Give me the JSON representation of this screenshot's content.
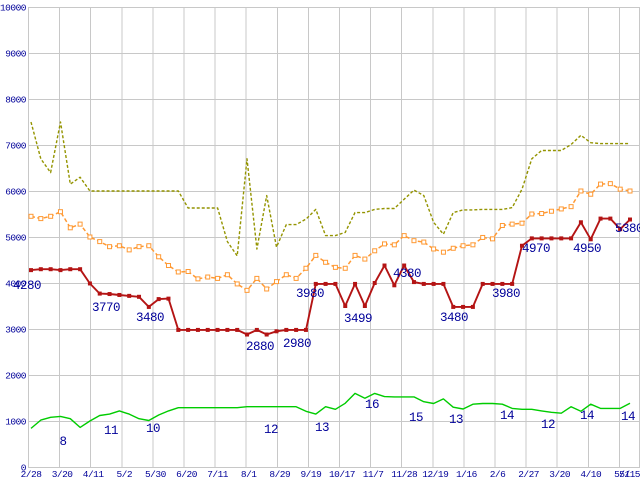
{
  "chart_data": {
    "type": "line",
    "title": "",
    "grid": true,
    "legend": "none",
    "background": "#ffffff",
    "grid_color": "#c8c8c8",
    "axis_text_color": "#000099",
    "annotation_text_color": "#000099",
    "ylim": [
      0,
      10000
    ],
    "y_ticks": [
      0,
      1000,
      2000,
      3000,
      4000,
      5000,
      6000,
      7000,
      8000,
      9000,
      10000
    ],
    "x_labels": [
      "2/28",
      "3/20",
      "4/11",
      "5/2",
      "5/30",
      "6/20",
      "7/11",
      "8/1",
      "8/29",
      "9/19",
      "10/17",
      "11/7",
      "11/28",
      "12/19",
      "1/16",
      "2/6",
      "2/27",
      "3/20",
      "4/10",
      "5/1",
      "5/15"
    ],
    "series": [
      {
        "id": "olive-dashed-line",
        "color": "#949400",
        "dash": "3,2",
        "width": 1.4,
        "marker": "none",
        "values": [
          7500,
          6700,
          6400,
          7500,
          6150,
          6300,
          6000,
          6000,
          6000,
          6000,
          6000,
          6000,
          6000,
          6000,
          6000,
          6000,
          5630,
          5630,
          5630,
          5630,
          4900,
          4590,
          6700,
          4740,
          5900,
          4780,
          5270,
          5270,
          5390,
          5600,
          5030,
          5030,
          5100,
          5530,
          5530,
          5600,
          5620,
          5620,
          5820,
          6020,
          5900,
          5320,
          5060,
          5530,
          5590,
          5590,
          5600,
          5600,
          5600,
          5640,
          6040,
          6700,
          6880,
          6880,
          6880,
          7010,
          7210,
          7050,
          7030,
          7030,
          7030,
          7030
        ]
      },
      {
        "id": "orange-dashed-line",
        "color": "#ff9933",
        "dash": "4,2.5",
        "width": 1.5,
        "marker": "open-square",
        "values": [
          5450,
          5400,
          5450,
          5550,
          5200,
          5280,
          5000,
          4900,
          4790,
          4810,
          4720,
          4790,
          4810,
          4570,
          4380,
          4240,
          4250,
          4090,
          4130,
          4100,
          4180,
          3980,
          3840,
          4100,
          3870,
          4030,
          4180,
          4100,
          4320,
          4600,
          4450,
          4340,
          4320,
          4600,
          4520,
          4700,
          4850,
          4830,
          5030,
          4920,
          4890,
          4740,
          4670,
          4755,
          4810,
          4830,
          4990,
          4960,
          5250,
          5280,
          5300,
          5500,
          5510,
          5560,
          5610,
          5660,
          6000,
          5930,
          6150,
          6160,
          6040,
          6000
        ]
      },
      {
        "id": "red-solid-line",
        "color": "#b41414",
        "dash": "",
        "width": 1.9,
        "marker": "filled-square",
        "values": [
          4280,
          4300,
          4300,
          4280,
          4300,
          4300,
          3990,
          3770,
          3760,
          3740,
          3720,
          3700,
          3480,
          3650,
          3660,
          2980,
          2980,
          2980,
          2980,
          2980,
          2980,
          2980,
          2880,
          2980,
          2880,
          2950,
          2980,
          2980,
          2980,
          3980,
          3980,
          3980,
          3500,
          3980,
          3500,
          4000,
          4380,
          3950,
          4380,
          4020,
          3980,
          3980,
          3980,
          3480,
          3480,
          3480,
          3980,
          3980,
          3980,
          3980,
          4810,
          4970,
          4970,
          4970,
          4970,
          4970,
          5320,
          4950,
          5400,
          5400,
          5170,
          5380
        ]
      },
      {
        "id": "green-solid-line",
        "color": "#00cc00",
        "dash": "",
        "width": 1.4,
        "marker": "none",
        "values": [
          840,
          1020,
          1080,
          1100,
          1050,
          860,
          1000,
          1120,
          1150,
          1220,
          1150,
          1050,
          1010,
          1130,
          1220,
          1290,
          1290,
          1290,
          1290,
          1290,
          1290,
          1290,
          1310,
          1310,
          1310,
          1310,
          1310,
          1310,
          1210,
          1150,
          1310,
          1255,
          1385,
          1600,
          1495,
          1600,
          1530,
          1525,
          1525,
          1525,
          1420,
          1380,
          1480,
          1300,
          1260,
          1365,
          1380,
          1380,
          1365,
          1275,
          1255,
          1255,
          1220,
          1190,
          1170,
          1310,
          1210,
          1365,
          1275,
          1275,
          1275,
          1385
        ]
      }
    ],
    "annotations": [
      {
        "text": "4280",
        "x": 27,
        "y": 289
      },
      {
        "text": "3770",
        "x": 106,
        "y": 311
      },
      {
        "text": "3480",
        "x": 150,
        "y": 321
      },
      {
        "text": "2880",
        "x": 260,
        "y": 350
      },
      {
        "text": "2980",
        "x": 297,
        "y": 347
      },
      {
        "text": "3980",
        "x": 310,
        "y": 297
      },
      {
        "text": "3499",
        "x": 358,
        "y": 322
      },
      {
        "text": "4380",
        "x": 407,
        "y": 277
      },
      {
        "text": "3480",
        "x": 454,
        "y": 321
      },
      {
        "text": "3980",
        "x": 506,
        "y": 297
      },
      {
        "text": "4970",
        "x": 536,
        "y": 252
      },
      {
        "text": "4950",
        "x": 587,
        "y": 252
      },
      {
        "text": "5380",
        "x": 629,
        "y": 232
      },
      {
        "text": "8",
        "x": 63,
        "y": 445
      },
      {
        "text": "11",
        "x": 111,
        "y": 434
      },
      {
        "text": "10",
        "x": 153,
        "y": 432
      },
      {
        "text": "12",
        "x": 271,
        "y": 433
      },
      {
        "text": "13",
        "x": 322,
        "y": 431
      },
      {
        "text": "16",
        "x": 372,
        "y": 408
      },
      {
        "text": "15",
        "x": 416,
        "y": 421
      },
      {
        "text": "13",
        "x": 456,
        "y": 423
      },
      {
        "text": "14",
        "x": 507,
        "y": 419
      },
      {
        "text": "12",
        "x": 548,
        "y": 428
      },
      {
        "text": "14",
        "x": 587,
        "y": 419
      },
      {
        "text": "14",
        "x": 628,
        "y": 420
      }
    ]
  }
}
